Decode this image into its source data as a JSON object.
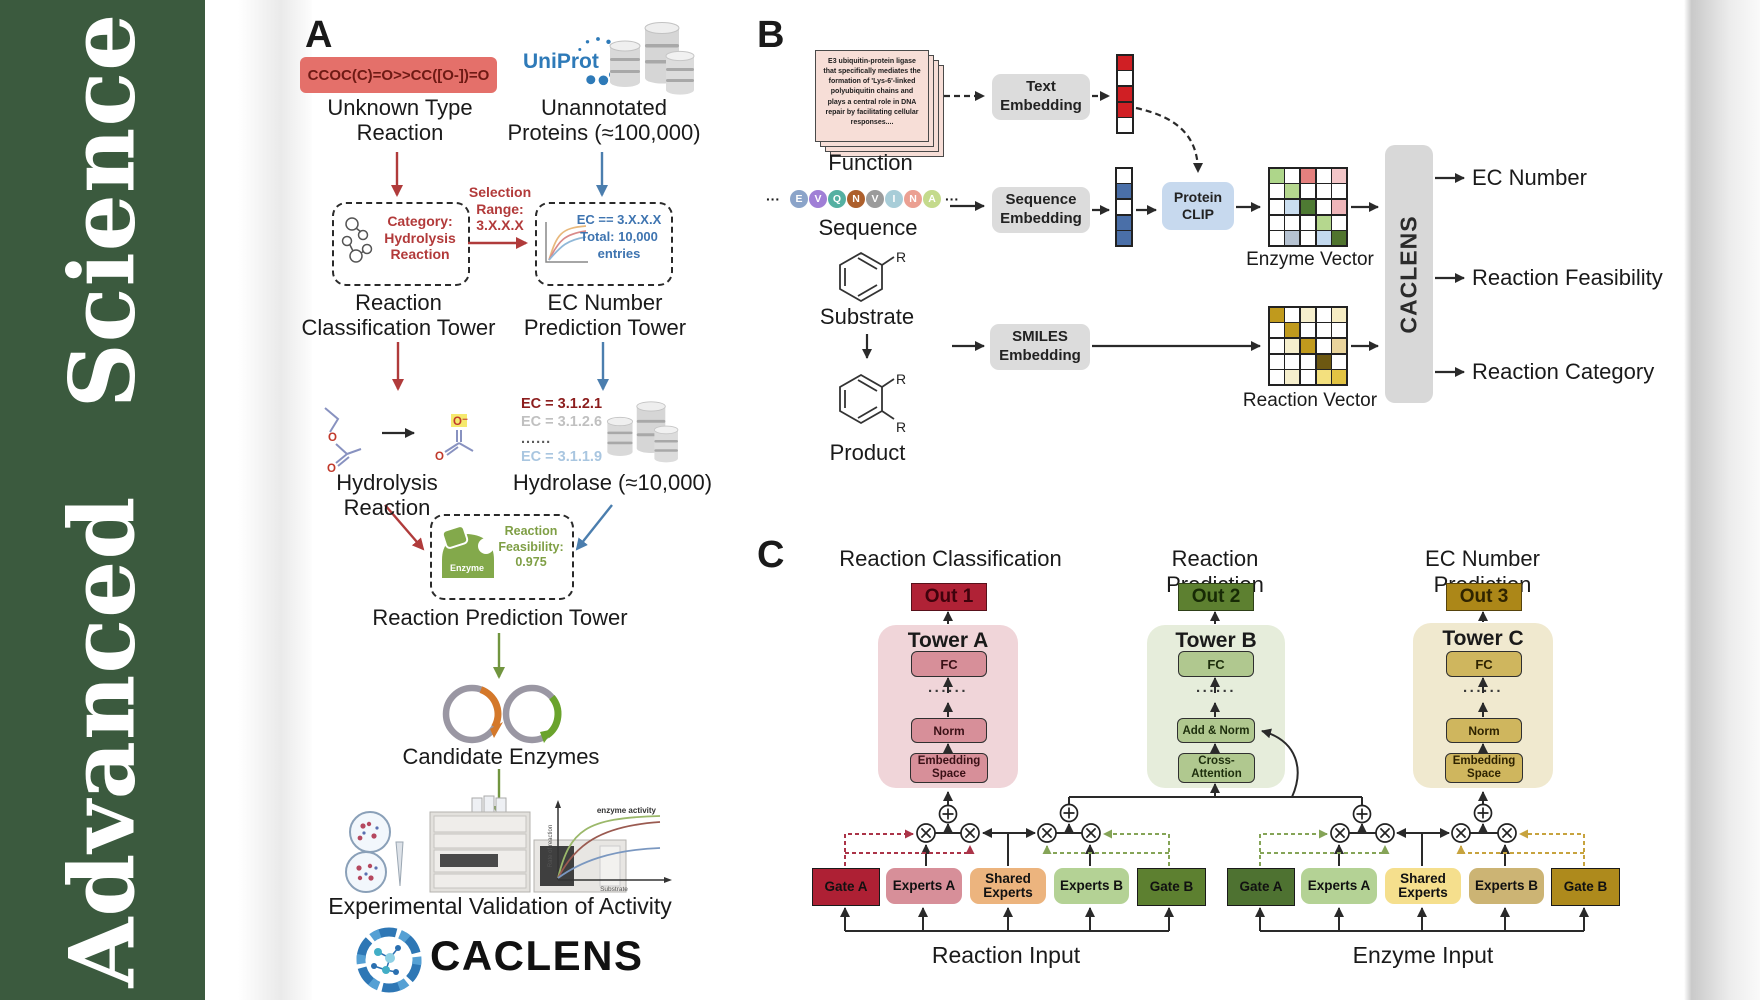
{
  "journal": {
    "name": "Advanced Science"
  },
  "panel_a": {
    "label": "A",
    "smiles_reaction": "CCOC(C)=O>>CC([O-])=O",
    "unknown_type": "Unknown Type\nReaction",
    "uniprot": "UniProt",
    "unannotated": "Unannotated\nProteins (≈100,000)",
    "selection_range": "Selection\nRange:\n3.X.X.X",
    "category": "Category:\nHydrolysis\nReaction",
    "ec_selection": "EC == 3.X.X.X\nTotal: 10,000\nentries",
    "tower1": "Reaction\nClassification Tower",
    "tower2": "EC Number\nPrediction Tower",
    "hydrolysis_reaction": "Hydrolysis Reaction",
    "ec_list": [
      "EC = 3.1.2.1",
      "EC = 3.1.2.6",
      "......",
      "EC = 3.1.1.9"
    ],
    "hydrolase": "Hydrolase (≈10,000)",
    "enzyme_badge": "Enzyme",
    "feasibility": "Reaction\nFeasibility:\n0.975",
    "tower3": "Reaction Prediction Tower",
    "candidate_enzymes": "Candidate Enzymes",
    "activity_plot": {
      "title": "enzyme activity",
      "ylabel": "Rate of reaction",
      "xlabel": "Substrate"
    },
    "experimental_validation": "Experimental Validation of Activity",
    "brand": "CACLENS",
    "atoms": {
      "o": "O",
      "o_minus": "O⁻"
    }
  },
  "panel_b": {
    "label": "B",
    "function_card": "E3 ubiquitin-protein ligase that specifically mediates the formation of 'Lys-6'-linked polyubiquitin chains and plays a central role in DNA repair by facilitating cellular responses....",
    "function_label": "Function",
    "ellipsis": "···",
    "sequence_letters": [
      {
        "ch": "E",
        "color": "#8ba4c9"
      },
      {
        "ch": "V",
        "color": "#a07fd6"
      },
      {
        "ch": "Q",
        "color": "#55b0a2"
      },
      {
        "ch": "N",
        "color": "#ad5f2c"
      },
      {
        "ch": "V",
        "color": "#9b9b9b"
      },
      {
        "ch": "I",
        "color": "#a8cdd8"
      },
      {
        "ch": "N",
        "color": "#eba092"
      },
      {
        "ch": "A",
        "color": "#c4da8c"
      }
    ],
    "sequence_label": "Sequence",
    "substrate_label": "Substrate",
    "product_label": "Product",
    "r_group": "R",
    "text_embedding": "Text\nEmbedding",
    "sequence_embedding": "Sequence\nEmbedding",
    "smiles_embedding": "SMILES\nEmbedding",
    "protein_clip": "Protein\nCLIP",
    "enzyme_vector_label": "Enzyme Vector",
    "reaction_vector_label": "Reaction Vector",
    "model_name": "CACLENS",
    "outputs": [
      "EC Number",
      "Reaction Feasibility",
      "Reaction Category"
    ],
    "text_vector": [
      "#d01f24",
      "#ffffff",
      "#d01f24",
      "#d01f24",
      "#ffffff"
    ],
    "sequence_vector": [
      "#ffffff",
      "#4a6fa8",
      "#ffffff",
      "#4a6fa8",
      "#4a6fa8"
    ],
    "enzyme_matrix": [
      [
        "#aed68a",
        "#ffffff",
        "#e4807e",
        "#ffffff",
        "#f3c6c8"
      ],
      [
        "#ffffff",
        "#b5d78e",
        "#ffffff",
        "#ffffff",
        "#ffffff"
      ],
      [
        "#ffffff",
        "#cadef0",
        "#4e7a33",
        "#ffffff",
        "#efb6ba"
      ],
      [
        "#ffffff",
        "#ffffff",
        "#ffffff",
        "#b5d78e",
        "#ffffff"
      ],
      [
        "#ffffff",
        "#b6c3d2",
        "#ffffff",
        "#c3d9ee",
        "#50742e"
      ]
    ],
    "reaction_matrix": [
      [
        "#c09a1d",
        "#ffffff",
        "#f6efcd",
        "#ffffff",
        "#f6ecc3"
      ],
      [
        "#ffffff",
        "#c09a1d",
        "#ffffff",
        "#ffffff",
        "#ffffff"
      ],
      [
        "#ffffff",
        "#f6efcd",
        "#c09a1d",
        "#ffffff",
        "#e9d49c"
      ],
      [
        "#ffffff",
        "#ffffff",
        "#ffffff",
        "#6d5811",
        "#ffffff"
      ],
      [
        "#ffffff",
        "#f6efcd",
        "#ffffff",
        "#f3e07e",
        "#e2c343"
      ]
    ]
  },
  "panel_c": {
    "label": "C",
    "columns": [
      {
        "title": "Reaction Classification",
        "out": "Out 1",
        "tower": "Tower A",
        "fc": "FC",
        "mid": "Norm",
        "base": "Embedding\nSpace",
        "dots": "......"
      },
      {
        "title": "Reaction Prediction",
        "out": "Out 2",
        "tower": "Tower B",
        "fc": "FC",
        "mid": "Add & Norm",
        "base": "Cross-\nAttention",
        "dots": "......"
      },
      {
        "title": "EC Number Prediction",
        "out": "Out 3",
        "tower": "Tower C",
        "fc": "FC",
        "mid": "Norm",
        "base": "Embedding\nSpace",
        "dots": "......"
      }
    ],
    "moe": [
      {
        "gate_a": "Gate A",
        "experts_a": "Experts A",
        "shared": "Shared\nExperts",
        "experts_b": "Experts B",
        "gate_b": "Gate B",
        "input_label": "Reaction Input"
      },
      {
        "gate_a": "Gate A",
        "experts_a": "Experts A",
        "shared": "Shared\nExperts",
        "experts_b": "Experts B",
        "gate_b": "Gate B",
        "input_label": "Enzyme Input"
      }
    ]
  },
  "colors": {
    "sidebar_green": "#3b5a3e",
    "smiles_box": "#e4706a",
    "accent_red": "#b03b3b",
    "accent_blue": "#4b7eae",
    "accent_green": "#71953f",
    "uniprot_blue": "#2e7ab8",
    "out1": "#b02236",
    "out2": "#5d8030",
    "out3": "#ac8718"
  }
}
